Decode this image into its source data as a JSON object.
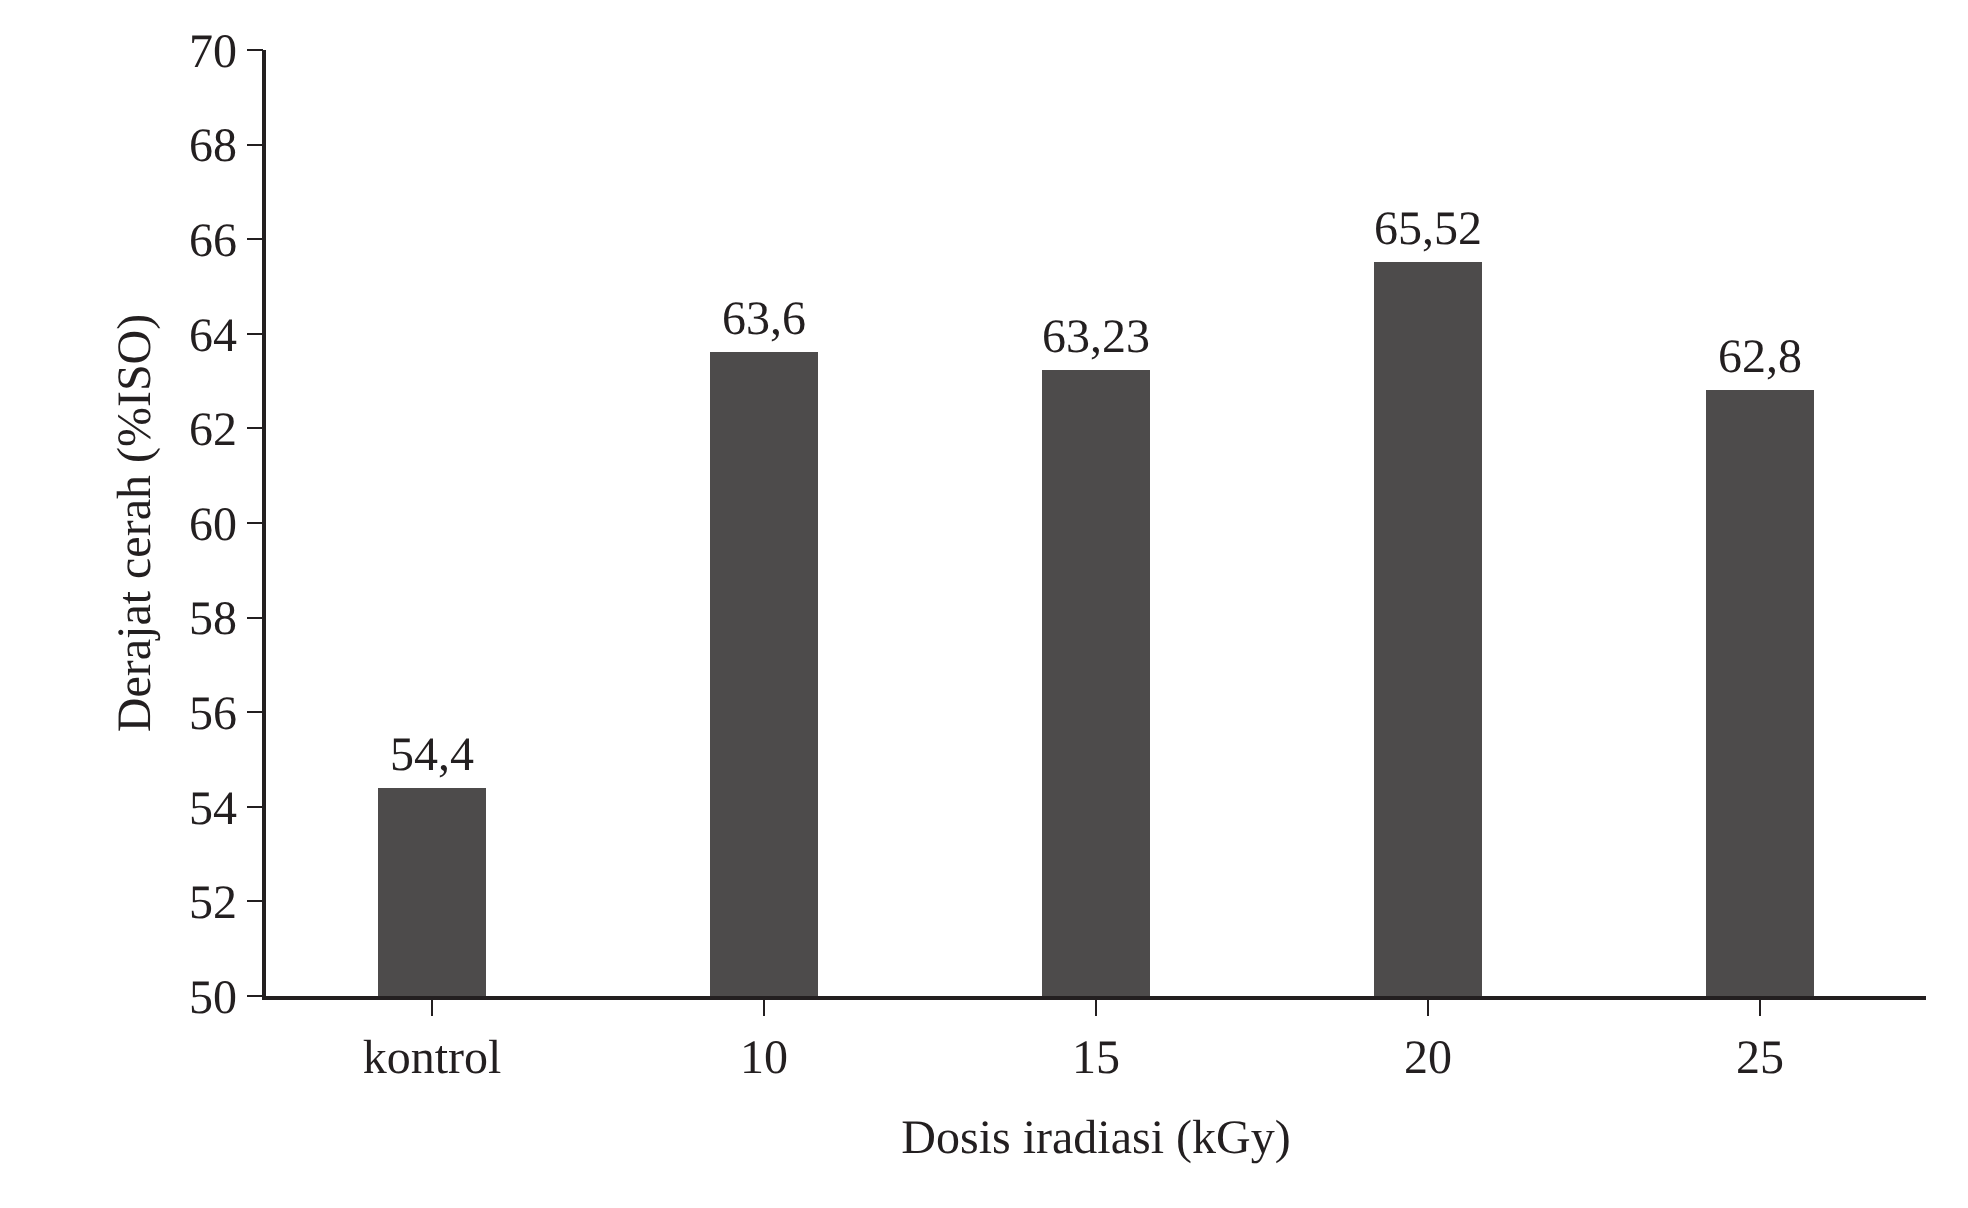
{
  "chart_data": {
    "type": "bar",
    "xlabel": "Dosis iradiasi (kGy)",
    "ylabel": "Derajat cerah (%ISO)",
    "categories": [
      "kontrol",
      "10",
      "15",
      "20",
      "25"
    ],
    "values": [
      54.4,
      63.6,
      63.23,
      65.52,
      62.8
    ],
    "value_labels": [
      "54,4",
      "63,6",
      "63,23",
      "65,52",
      "62,8"
    ],
    "color": "#4d4b4b",
    "ylim": [
      50,
      70
    ],
    "yticks": [
      50,
      52,
      54,
      56,
      58,
      60,
      62,
      64,
      66,
      68,
      70
    ],
    "grid": false,
    "legend": false
  }
}
